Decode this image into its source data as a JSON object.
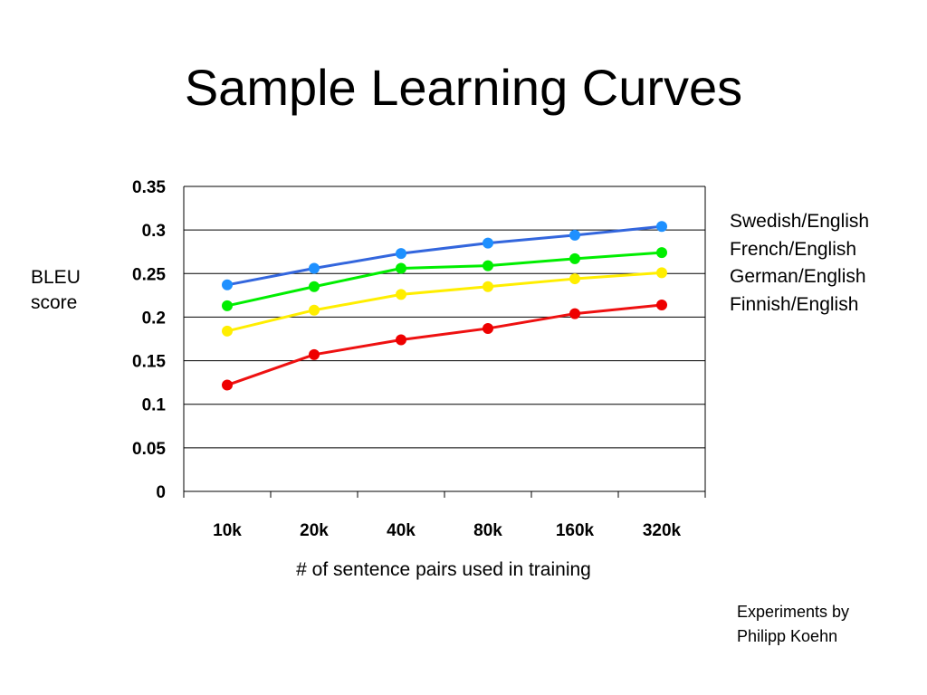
{
  "page": {
    "title": "Sample Learning Curves",
    "credit": [
      "Experiments by",
      "Philipp Koehn"
    ]
  },
  "chart_data": {
    "type": "line",
    "title": "",
    "xlabel": "# of sentence pairs used in training",
    "ylabel": "BLEU score",
    "ylabel_lines": [
      "BLEU",
      "score"
    ],
    "categories": [
      "10k",
      "20k",
      "40k",
      "80k",
      "160k",
      "320k"
    ],
    "ylim": [
      0,
      0.35
    ],
    "yticks": [
      "0",
      "0.05",
      "0.1",
      "0.15",
      "0.2",
      "0.25",
      "0.3",
      "0.35"
    ],
    "grid": true,
    "legend_position": "right",
    "series": [
      {
        "name": "Swedish/English",
        "color": "#3366dd",
        "marker": "#1e90ff",
        "values": [
          0.237,
          0.256,
          0.273,
          0.285,
          0.294,
          0.304
        ]
      },
      {
        "name": "French/English",
        "color": "#00ee00",
        "marker": "#00ee00",
        "values": [
          0.213,
          0.235,
          0.256,
          0.259,
          0.267,
          0.274
        ]
      },
      {
        "name": "German/English",
        "color": "#ffee00",
        "marker": "#ffee00",
        "values": [
          0.184,
          0.208,
          0.226,
          0.235,
          0.244,
          0.251
        ]
      },
      {
        "name": "Finnish/English",
        "color": "#ee1111",
        "marker": "#ee0000",
        "values": [
          0.122,
          0.157,
          0.174,
          0.187,
          0.204,
          0.214
        ]
      }
    ]
  }
}
